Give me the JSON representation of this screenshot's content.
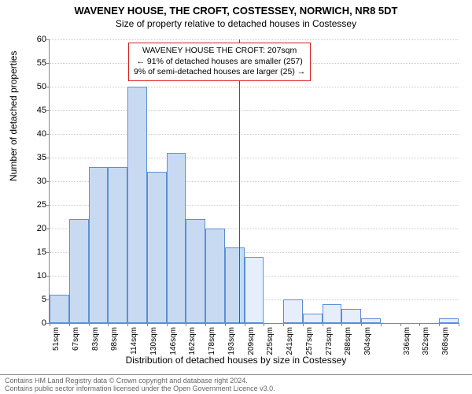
{
  "title": "WAVENEY HOUSE, THE CROFT, COSTESSEY, NORWICH, NR8 5DT",
  "subtitle": "Size of property relative to detached houses in Costessey",
  "y_axis_label": "Number of detached properties",
  "x_axis_label": "Distribution of detached houses by size in Costessey",
  "footer_line1": "Contains HM Land Registry data © Crown copyright and database right 2024.",
  "footer_line2": "Contains public sector information licensed under the Open Government Licence v3.0.",
  "annotation": {
    "line1": "WAVENEY HOUSE THE CROFT: 207sqm",
    "line2": "← 91% of detached houses are smaller (257)",
    "line3": "9% of semi-detached houses are larger (25) →",
    "x_value": 207
  },
  "chart": {
    "type": "histogram",
    "ylim": [
      0,
      60
    ],
    "ytick_step": 5,
    "x_start": 51,
    "x_step": 16,
    "x_count": 21,
    "bar_fill": "#c8daf2",
    "bar_light_fill": "#e6eefb",
    "bar_border": "#5b8fd6",
    "grid_color": "#cccccc",
    "annotation_color": "#d62020",
    "background": "#ffffff",
    "values": [
      6,
      22,
      33,
      33,
      50,
      32,
      36,
      22,
      20,
      16,
      14,
      0,
      5,
      2,
      4,
      3,
      1,
      0,
      0,
      0,
      1
    ],
    "light": [
      false,
      false,
      false,
      false,
      false,
      false,
      false,
      false,
      false,
      false,
      true,
      false,
      true,
      true,
      true,
      true,
      true,
      false,
      false,
      false,
      true
    ],
    "x_labels": [
      "51sqm",
      "67sqm",
      "83sqm",
      "98sqm",
      "114sqm",
      "130sqm",
      "146sqm",
      "162sqm",
      "178sqm",
      "193sqm",
      "209sqm",
      "225sqm",
      "241sqm",
      "257sqm",
      "273sqm",
      "288sqm",
      "304sqm",
      "",
      "336sqm",
      "352sqm",
      "368sqm"
    ]
  }
}
